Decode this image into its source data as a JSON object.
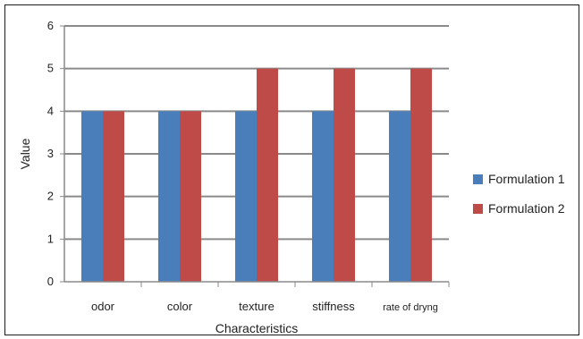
{
  "chart_data": {
    "type": "bar",
    "title": "",
    "xlabel": "Characteristics",
    "ylabel": "Value",
    "categories": [
      "odor",
      "color",
      "texture",
      "stiffness",
      "rate of dryng"
    ],
    "series": [
      {
        "name": "Formulation 1",
        "color": "#4a7ebb",
        "values": [
          4,
          4,
          4,
          4,
          4
        ]
      },
      {
        "name": "Formulation 2",
        "color": "#be4b48",
        "values": [
          4,
          4,
          5,
          5,
          5
        ]
      }
    ],
    "ylim": [
      0,
      6
    ],
    "yticks": [
      0,
      1,
      2,
      3,
      4,
      5,
      6
    ],
    "grid": true,
    "legend_position": "right"
  }
}
